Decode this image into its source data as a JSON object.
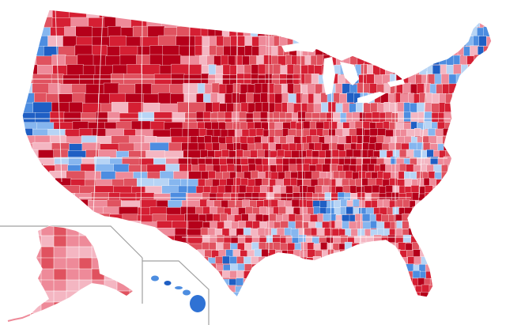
{
  "map": {
    "regions": [
      "contiguous-us",
      "alaska",
      "hawaii"
    ],
    "palette": {
      "strong_red": "#b5001a",
      "red": "#d51f33",
      "medium_red": "#e0525f",
      "light_red": "#ee8a99",
      "pale_red": "#f4b6c2",
      "pale_blue": "#b7d4f5",
      "light_blue": "#86b6ef",
      "medium_blue": "#4d8de0",
      "strong_blue": "#1f5fc4",
      "county_line": "#ffffff",
      "inset_border": "#a0a0a0",
      "ocean": "#ffffff"
    }
  }
}
